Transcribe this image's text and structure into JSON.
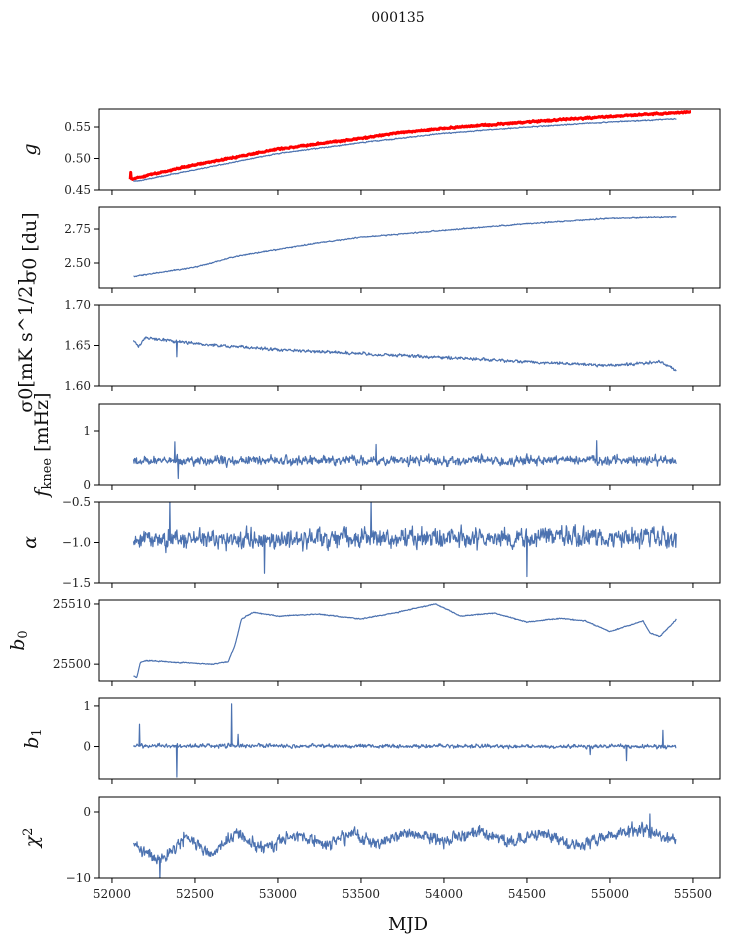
{
  "chart_data": {
    "type": "line",
    "title": "000135",
    "xlabel": "MJD",
    "xlim": [
      51922,
      55663
    ],
    "xticks": [
      52000,
      52500,
      53000,
      53500,
      54000,
      54500,
      55000,
      55500
    ],
    "line_color": "#4c72b0",
    "highlight_color": "#ff0000",
    "panels": [
      {
        "ylabel": "g",
        "ylabel_parts": [
          [
            "g",
            "i"
          ]
        ],
        "ylim": [
          0.45,
          0.5786
        ],
        "yticks": [
          0.45,
          0.5,
          0.55
        ],
        "yticklabels": [
          "0.45",
          "0.50",
          "0.55"
        ],
        "series": [
          {
            "name": "gain (red)",
            "color": "#ff0000",
            "width": 3,
            "noise": 0.0012,
            "x": [
              52110,
              52500,
              53000,
              53500,
              53700,
              54000,
              54500,
              55000,
              55490
            ],
            "y": [
              0.467,
              0.49,
              0.515,
              0.532,
              0.54,
              0.548,
              0.558,
              0.567,
              0.574
            ],
            "spikes": [
              [
                52112,
                0.44
              ],
              [
                52114,
                0.478
              ]
            ]
          },
          {
            "name": "gain",
            "color": "#4c72b0",
            "width": 1.2,
            "noise": 0.0008,
            "x": [
              52130,
              52500,
              53000,
              53500,
              54000,
              54500,
              55000,
              55400
            ],
            "y": [
              0.463,
              0.482,
              0.508,
              0.525,
              0.54,
              0.55,
              0.558,
              0.563
            ]
          }
        ]
      },
      {
        "ylabel": "σ0 [du]",
        "ylabel_parts": [
          [
            "σ",
            "i"
          ],
          [
            "0",
            "sub"
          ],
          [
            " [du]",
            ""
          ]
        ],
        "ylim": [
          2.316,
          2.912
        ],
        "yticks": [
          2.5,
          2.75
        ],
        "yticklabels": [
          "2.50",
          "2.75"
        ],
        "series": [
          {
            "name": "sigma0_du",
            "color": "#4c72b0",
            "width": 1.2,
            "noise": 0.004,
            "x": [
              52130,
              52500,
              52750,
              53000,
              53250,
              53500,
              54000,
              54500,
              55000,
              55400
            ],
            "y": [
              2.4,
              2.47,
              2.55,
              2.6,
              2.65,
              2.69,
              2.74,
              2.79,
              2.83,
              2.84
            ]
          }
        ]
      },
      {
        "ylabel": "σ0[mK s^1/2]",
        "ylabel_parts": [
          [
            "σ",
            "i"
          ],
          [
            "0",
            "sub"
          ],
          [
            "[mK s",
            ""
          ],
          [
            "1/2",
            "sup"
          ],
          [
            "]",
            ""
          ]
        ],
        "ylim": [
          1.6,
          1.7
        ],
        "yticks": [
          1.6,
          1.65,
          1.7
        ],
        "yticklabels": [
          "1.60",
          "1.65",
          "1.70"
        ],
        "series": [
          {
            "name": "sigma0_mK",
            "color": "#4c72b0",
            "width": 1.2,
            "noise": 0.0018,
            "x": [
              52130,
              52160,
              52200,
              52500,
              53000,
              53500,
              54000,
              54500,
              55000,
              55300,
              55400
            ],
            "y": [
              1.657,
              1.648,
              1.66,
              1.652,
              1.645,
              1.64,
              1.635,
              1.63,
              1.625,
              1.63,
              1.62
            ],
            "spikes": [
              [
                52390,
                1.636
              ]
            ]
          }
        ]
      },
      {
        "ylabel": "f_knee [mHz]",
        "ylabel_parts": [
          [
            "f",
            "i"
          ],
          [
            "knee",
            "sub"
          ],
          [
            " [mHz]",
            ""
          ]
        ],
        "ylim": [
          0,
          1.5
        ],
        "yticks": [
          0,
          1
        ],
        "yticklabels": [
          "0",
          "1"
        ],
        "series": [
          {
            "name": "fknee",
            "color": "#4c72b0",
            "width": 1.2,
            "noise": 0.09,
            "x": [
              52130,
              55400
            ],
            "y": [
              0.45,
              0.45
            ],
            "spikes": [
              [
                52380,
                0.8
              ],
              [
                52400,
                0.12
              ],
              [
                54920,
                0.82
              ],
              [
                53590,
                0.75
              ]
            ]
          }
        ]
      },
      {
        "ylabel": "α",
        "ylabel_parts": [
          [
            "α",
            "i"
          ]
        ],
        "ylim": [
          -1.5,
          -0.5
        ],
        "yticks": [
          -1.5,
          -1.0,
          -0.5
        ],
        "yticklabels": [
          "−1.5",
          "−1.0",
          "−0.5"
        ],
        "series": [
          {
            "name": "alpha",
            "color": "#4c72b0",
            "width": 1.2,
            "noise": 0.12,
            "x": [
              52130,
              55400
            ],
            "y": [
              -0.96,
              -0.94
            ],
            "spikes": [
              [
                52350,
                -0.48
              ],
              [
                53560,
                -0.48
              ],
              [
                54500,
                -1.42
              ],
              [
                52920,
                -1.38
              ]
            ]
          }
        ]
      },
      {
        "ylabel": "b0",
        "ylabel_parts": [
          [
            "b",
            "i"
          ],
          [
            "0",
            "sub"
          ]
        ],
        "ylim": [
          25497.2,
          25510.66
        ],
        "yticks": [
          25500,
          25510
        ],
        "yticklabels": [
          "25500",
          "25510"
        ],
        "series": [
          {
            "name": "b0",
            "color": "#4c72b0",
            "width": 1.2,
            "noise": 0.08,
            "x": [
              52130,
              52150,
              52170,
              52200,
              52400,
              52600,
              52700,
              52740,
              52780,
              52850,
              53000,
              53250,
              53500,
              53700,
              53950,
              54100,
              54300,
              54500,
              54700,
              54850,
              55000,
              55200,
              55240,
              55300,
              55400
            ],
            "y": [
              25498,
              25497.8,
              25500.2,
              25500.6,
              25500.3,
              25500.0,
              25500.4,
              25503,
              25507.5,
              25508.6,
              25508,
              25508.3,
              25507.5,
              25508.5,
              25510,
              25508,
              25508.5,
              25507,
              25507.6,
              25507.2,
              25505.4,
              25507.2,
              25505.2,
              25504.6,
              25507.4
            ]
          }
        ]
      },
      {
        "ylabel": "b1",
        "ylabel_parts": [
          [
            "b",
            "i"
          ],
          [
            "1",
            "sub"
          ]
        ],
        "ylim": [
          -0.8,
          1.195
        ],
        "yticks": [
          0,
          1
        ],
        "yticklabels": [
          "0",
          "1"
        ],
        "series": [
          {
            "name": "b1",
            "color": "#4c72b0",
            "width": 1.2,
            "noise": 0.045,
            "x": [
              52130,
              55400
            ],
            "y": [
              0.02,
              0.0
            ],
            "spikes": [
              [
                52165,
                0.55
              ],
              [
                52390,
                -0.75
              ],
              [
                52720,
                1.05
              ],
              [
                52760,
                0.3
              ],
              [
                55100,
                -0.35
              ],
              [
                55320,
                0.4
              ],
              [
                54880,
                -0.2
              ]
            ]
          }
        ]
      },
      {
        "ylabel": "χ2",
        "ylabel_parts": [
          [
            "χ",
            "i"
          ],
          [
            "2",
            "sup"
          ]
        ],
        "ylim": [
          -10,
          2.27
        ],
        "yticks": [
          -10,
          0
        ],
        "yticklabels": [
          "−10",
          "0"
        ],
        "series": [
          {
            "name": "chi2",
            "color": "#4c72b0",
            "width": 1.2,
            "noise": 0.9,
            "x": [
              52130,
              52300,
              52450,
              52600,
              52750,
              52900,
              53100,
              53300,
              53450,
              53600,
              53800,
              54000,
              54200,
              54400,
              54600,
              54800,
              55000,
              55200,
              55300,
              55400
            ],
            "y": [
              -5,
              -7.5,
              -3.5,
              -6.5,
              -3,
              -5.5,
              -3.5,
              -5,
              -3,
              -5,
              -3,
              -4.5,
              -2.8,
              -4.5,
              -3.3,
              -5,
              -3.5,
              -2.5,
              -3.5,
              -4.3
            ],
            "spikes": [
              [
                52290,
                -10.2
              ],
              [
                55240,
                -0.3
              ]
            ]
          }
        ]
      }
    ]
  }
}
